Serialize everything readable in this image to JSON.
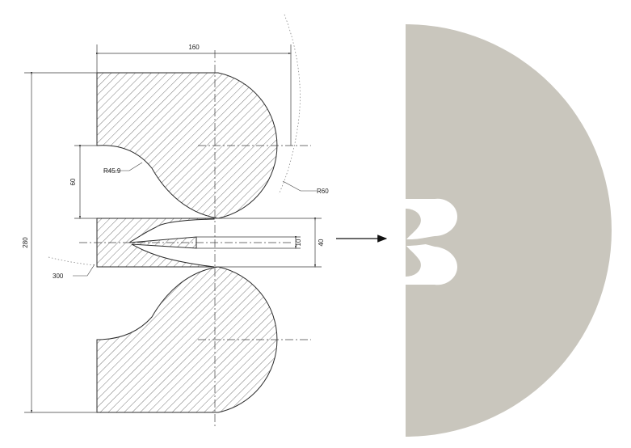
{
  "drawing": {
    "dimensions": {
      "width_label": "160",
      "total_height_label": "280",
      "upper_gap_label": "60",
      "fillet_radius_label": "R45.9",
      "outer_radius_label": "R60",
      "throat_gap_label": "10",
      "middle_height_label": "40",
      "large_radius_label": "300"
    }
  },
  "colors": {
    "section_fill": "#c9c6bd",
    "hatch_line": "#555555",
    "outline": "#2b2b2b"
  }
}
